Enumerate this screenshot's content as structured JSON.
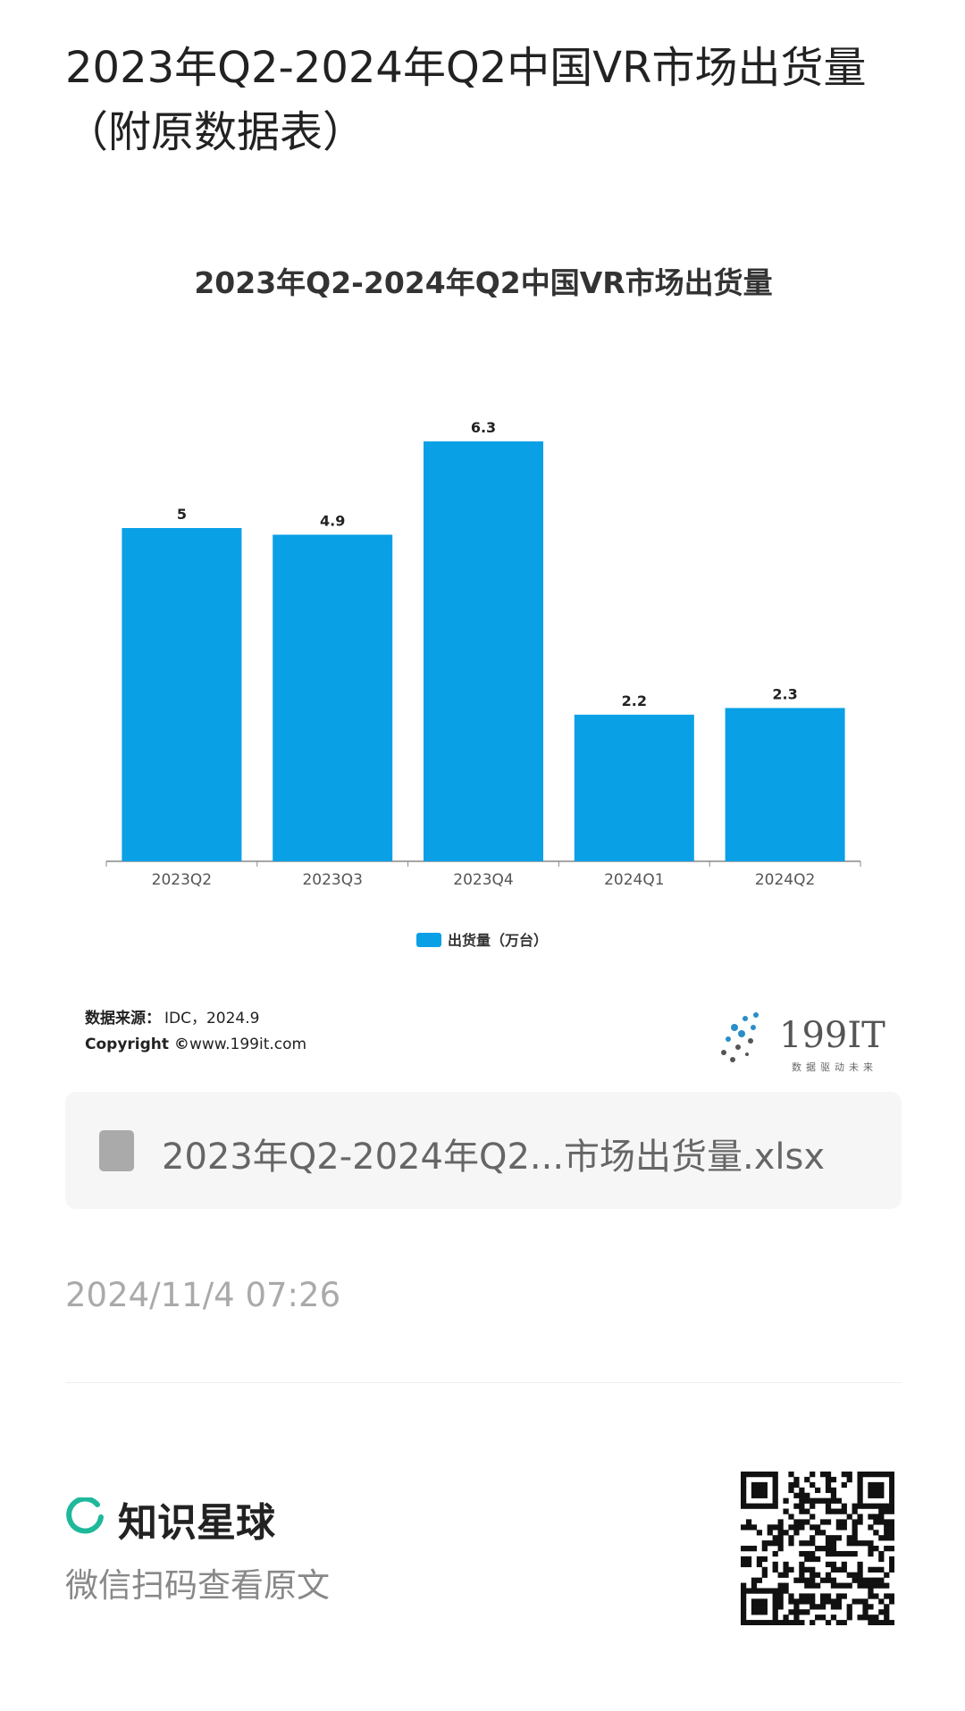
{
  "header": {
    "title": "2023年Q2-2024年Q2中国VR市场出货量（附原数据表）"
  },
  "chart_data": {
    "type": "bar",
    "title": "2023年Q2-2024年Q2中国VR市场出货量",
    "categories": [
      "2023Q2",
      "2023Q3",
      "2023Q4",
      "2024Q1",
      "2024Q2"
    ],
    "series": [
      {
        "name": "出货量（万台）",
        "color": "#0aa0e6",
        "values": [
          5,
          4.9,
          6.3,
          2.2,
          2.3
        ]
      }
    ],
    "legend": "bottom"
  },
  "source": {
    "label": "数据来源：",
    "text": "IDC，2024.9",
    "copyright_label": "Copyright ©",
    "copyright_text": "www.199it.com"
  },
  "logo": {
    "name": "199IT",
    "slogan": "数据驱动未来"
  },
  "file": {
    "name": "2023年Q2-2024年Q2...市场出货量.xlsx"
  },
  "date": "2024/11/4 07:26",
  "footer": {
    "brand": "知识星球",
    "caption": "微信扫码查看原文"
  }
}
